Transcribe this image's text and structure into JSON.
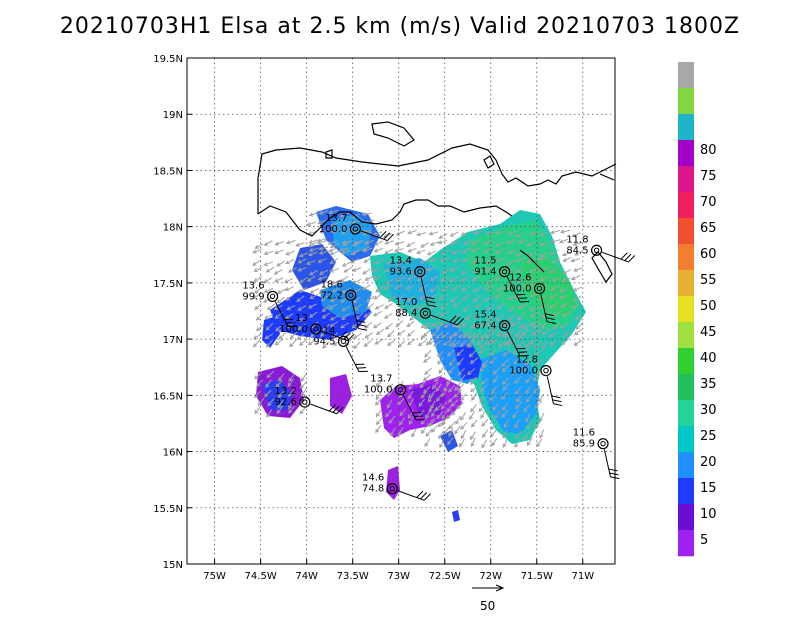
{
  "title": "20210703H1 Elsa at 2.5 km (m/s) Valid 20210703 1800Z",
  "reference_vector_label": "50",
  "colorbar": {
    "labels": [
      "5",
      "10",
      "15",
      "20",
      "25",
      "30",
      "35",
      "40",
      "45",
      "50",
      "55",
      "60",
      "65",
      "70",
      "75",
      "80"
    ],
    "colors": [
      "#a020f0",
      "#6a0dd6",
      "#1e3cff",
      "#1e90ff",
      "#00c8c8",
      "#20d49a",
      "#20c060",
      "#30d030",
      "#9ee040",
      "#e6e020",
      "#e8b030",
      "#f08030",
      "#f05030",
      "#f02060",
      "#e0148c",
      "#a000c8",
      "#20b4c8",
      "#80d840",
      "#a8a8a8"
    ]
  },
  "chart_data": {
    "type": "scatter",
    "title": "20210703H1 Elsa at 2.5 km (m/s) Valid 20210703 1800Z",
    "xlabel": "",
    "ylabel": "",
    "xlim": [
      -75.3,
      -70.65
    ],
    "ylim": [
      15.0,
      19.5
    ],
    "x_ticks": [
      {
        "value": -75.0,
        "label": "75W"
      },
      {
        "value": -74.5,
        "label": "74.5W"
      },
      {
        "value": -74.0,
        "label": "74W"
      },
      {
        "value": -73.5,
        "label": "73.5W"
      },
      {
        "value": -73.0,
        "label": "73W"
      },
      {
        "value": -72.5,
        "label": "72.5W"
      },
      {
        "value": -72.0,
        "label": "72W"
      },
      {
        "value": -71.5,
        "label": "71.5W"
      },
      {
        "value": -71.0,
        "label": "71W"
      }
    ],
    "y_ticks": [
      {
        "value": 15.0,
        "label": "15N"
      },
      {
        "value": 15.5,
        "label": "15.5N"
      },
      {
        "value": 16.0,
        "label": "16N"
      },
      {
        "value": 16.5,
        "label": "16.5N"
      },
      {
        "value": 17.0,
        "label": "17N"
      },
      {
        "value": 17.5,
        "label": "17.5N"
      },
      {
        "value": 18.0,
        "label": "18N"
      },
      {
        "value": 18.5,
        "label": "18.5N"
      },
      {
        "value": 19.0,
        "label": "19N"
      },
      {
        "value": 19.5,
        "label": "19.5N"
      }
    ],
    "grid": true,
    "observations": [
      {
        "lon": -73.47,
        "lat": 17.98,
        "speed": "13.7",
        "pct": "100.0"
      },
      {
        "lon": -74.37,
        "lat": 17.38,
        "speed": "13.6",
        "pct": "99.9"
      },
      {
        "lon": -73.52,
        "lat": 17.39,
        "speed": "18.6",
        "pct": "72.2"
      },
      {
        "lon": -73.9,
        "lat": 17.09,
        "speed": "13",
        "pct": "100.0"
      },
      {
        "lon": -73.6,
        "lat": 16.98,
        "speed": "14",
        "pct": "94.5"
      },
      {
        "lon": -72.77,
        "lat": 17.6,
        "speed": "13.4",
        "pct": "93.6"
      },
      {
        "lon": -72.71,
        "lat": 17.23,
        "speed": "17.0",
        "pct": "88.4"
      },
      {
        "lon": -71.85,
        "lat": 17.6,
        "speed": "11.5",
        "pct": "91.4"
      },
      {
        "lon": -71.47,
        "lat": 17.45,
        "speed": "12.6",
        "pct": "100.0"
      },
      {
        "lon": -70.85,
        "lat": 17.79,
        "speed": "11.8",
        "pct": "84.5"
      },
      {
        "lon": -71.85,
        "lat": 17.12,
        "speed": "15.4",
        "pct": "67.4"
      },
      {
        "lon": -71.4,
        "lat": 16.72,
        "speed": "12.8",
        "pct": "100.0"
      },
      {
        "lon": -74.02,
        "lat": 16.44,
        "speed": "13.2",
        "pct": "92.6"
      },
      {
        "lon": -72.98,
        "lat": 16.55,
        "speed": "13.7",
        "pct": "100.0"
      },
      {
        "lon": -70.78,
        "lat": 16.07,
        "speed": "11.6",
        "pct": "85.9"
      },
      {
        "lon": -73.07,
        "lat": 15.67,
        "speed": "14.6",
        "pct": "74.8"
      }
    ]
  }
}
